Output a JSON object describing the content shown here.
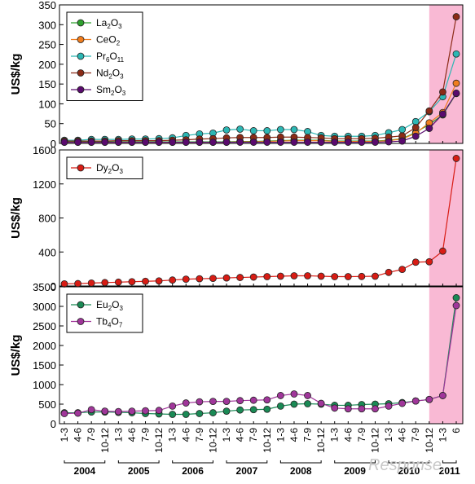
{
  "watermark": "Response.",
  "colors": {
    "highlight": "#f9b9d4",
    "La2O3": "#2ea02e",
    "CeO2": "#f07d1e",
    "Pr6O11": "#2cb7b4",
    "Nd2O3": "#8b2b16",
    "Sm2O3": "#5a0a6e",
    "Dy2O3": "#d81c14",
    "Eu2O3": "#1a8a55",
    "Tb4O7": "#a0369a"
  },
  "x_axis": {
    "tick_labels": [
      "1-3",
      "4-6",
      "7-9",
      "10-12",
      "1-3",
      "4-6",
      "7-9",
      "10-12",
      "1-3",
      "4-6",
      "7-9",
      "10-12",
      "1-3",
      "4-6",
      "7-9",
      "10-12",
      "1-3",
      "4-6",
      "7-9",
      "10-12",
      "1-3",
      "4-6",
      "7-9",
      "10-12",
      "1-3",
      "4-6",
      "7-9",
      "10-12",
      "1-3",
      "6"
    ],
    "years": [
      {
        "label": "2004",
        "start": 0,
        "end": 3
      },
      {
        "label": "2005",
        "start": 4,
        "end": 7
      },
      {
        "label": "2006",
        "start": 8,
        "end": 11
      },
      {
        "label": "2007",
        "start": 12,
        "end": 15
      },
      {
        "label": "2008",
        "start": 16,
        "end": 19
      },
      {
        "label": "2009",
        "start": 20,
        "end": 23
      },
      {
        "label": "2010",
        "start": 24,
        "end": 27
      },
      {
        "label": "2011",
        "start": 28,
        "end": 29
      }
    ]
  },
  "chart_data": [
    {
      "type": "line",
      "ylabel": "US$/kg",
      "ylim": [
        0,
        350
      ],
      "yticks": [
        0,
        50,
        100,
        150,
        200,
        250,
        300,
        350
      ],
      "highlight_from_index": 27,
      "legend_position": "top-left",
      "series": [
        {
          "key": "La2O3",
          "name": "La",
          "sub1": "2",
          "mid": "O",
          "sub2": "3",
          "values": [
            4,
            4,
            4,
            4,
            4,
            4,
            4,
            4,
            4,
            4,
            4,
            4,
            4,
            5,
            5,
            6,
            7,
            8,
            8,
            8,
            6,
            6,
            6,
            6,
            8,
            12,
            28,
            48,
            72,
            126
          ]
        },
        {
          "key": "CeO2",
          "name": "CeO",
          "sub1": "2",
          "mid": "",
          "sub2": "",
          "values": [
            3,
            3,
            3,
            3,
            3,
            3,
            3,
            3,
            3,
            3,
            3,
            3,
            3,
            4,
            4,
            5,
            6,
            7,
            7,
            7,
            5,
            5,
            5,
            5,
            7,
            11,
            26,
            52,
            78,
            152
          ]
        },
        {
          "key": "Pr6O11",
          "name": "Pr",
          "sub1": "6",
          "mid": "O",
          "sub2": "11",
          "values": [
            8,
            8,
            10,
            10,
            10,
            11,
            11,
            12,
            14,
            20,
            24,
            26,
            34,
            36,
            32,
            32,
            35,
            35,
            30,
            20,
            18,
            18,
            18,
            20,
            27,
            35,
            55,
            80,
            118,
            226
          ]
        },
        {
          "key": "Nd2O3",
          "name": "Nd",
          "sub1": "2",
          "mid": "O",
          "sub2": "3",
          "values": [
            6,
            6,
            6,
            6,
            7,
            7,
            7,
            7,
            8,
            9,
            11,
            12,
            14,
            15,
            15,
            15,
            16,
            16,
            15,
            14,
            12,
            12,
            12,
            13,
            16,
            19,
            40,
            82,
            130,
            320
          ]
        },
        {
          "key": "Sm2O3",
          "name": "Sm",
          "sub1": "2",
          "mid": "O",
          "sub2": "3",
          "values": [
            3,
            3,
            3,
            3,
            3,
            3,
            3,
            3,
            3,
            3,
            3,
            3,
            3,
            3,
            3,
            3,
            3,
            3,
            3,
            3,
            3,
            3,
            3,
            3,
            4,
            6,
            18,
            38,
            74,
            127
          ]
        }
      ]
    },
    {
      "type": "line",
      "ylabel": "US$/kg",
      "ylim": [
        0,
        1600
      ],
      "yticks": [
        0,
        400,
        800,
        1200,
        1600
      ],
      "highlight_from_index": 27,
      "legend_position": "top-left",
      "series": [
        {
          "key": "Dy2O3",
          "name": "Dy",
          "sub1": "2",
          "mid": "O",
          "sub2": "3",
          "values": [
            25,
            28,
            35,
            40,
            45,
            50,
            55,
            60,
            70,
            80,
            85,
            90,
            95,
            100,
            105,
            110,
            115,
            120,
            120,
            115,
            110,
            110,
            112,
            115,
            160,
            195,
            280,
            285,
            410,
            1500
          ]
        }
      ]
    },
    {
      "type": "line",
      "ylabel": "US$/kg",
      "ylim": [
        0,
        3500
      ],
      "yticks": [
        0,
        500,
        1000,
        1500,
        2000,
        2500,
        3000,
        3500
      ],
      "highlight_from_index": 27,
      "legend_position": "top-left",
      "series": [
        {
          "key": "Eu2O3",
          "name": "Eu",
          "sub1": "2",
          "mid": "O",
          "sub2": "3",
          "values": [
            280,
            280,
            300,
            300,
            290,
            280,
            260,
            250,
            240,
            240,
            260,
            280,
            320,
            350,
            360,
            370,
            450,
            500,
            510,
            500,
            470,
            470,
            490,
            500,
            510,
            540,
            580,
            620,
            720,
            3220
          ]
        },
        {
          "key": "Tb4O7",
          "name": "Tb",
          "sub1": "4",
          "mid": "O",
          "sub2": "7",
          "values": [
            260,
            270,
            360,
            320,
            310,
            320,
            330,
            340,
            450,
            530,
            560,
            570,
            570,
            590,
            600,
            610,
            720,
            760,
            720,
            520,
            400,
            380,
            380,
            380,
            450,
            520,
            580,
            620,
            720,
            3020
          ]
        }
      ]
    }
  ]
}
